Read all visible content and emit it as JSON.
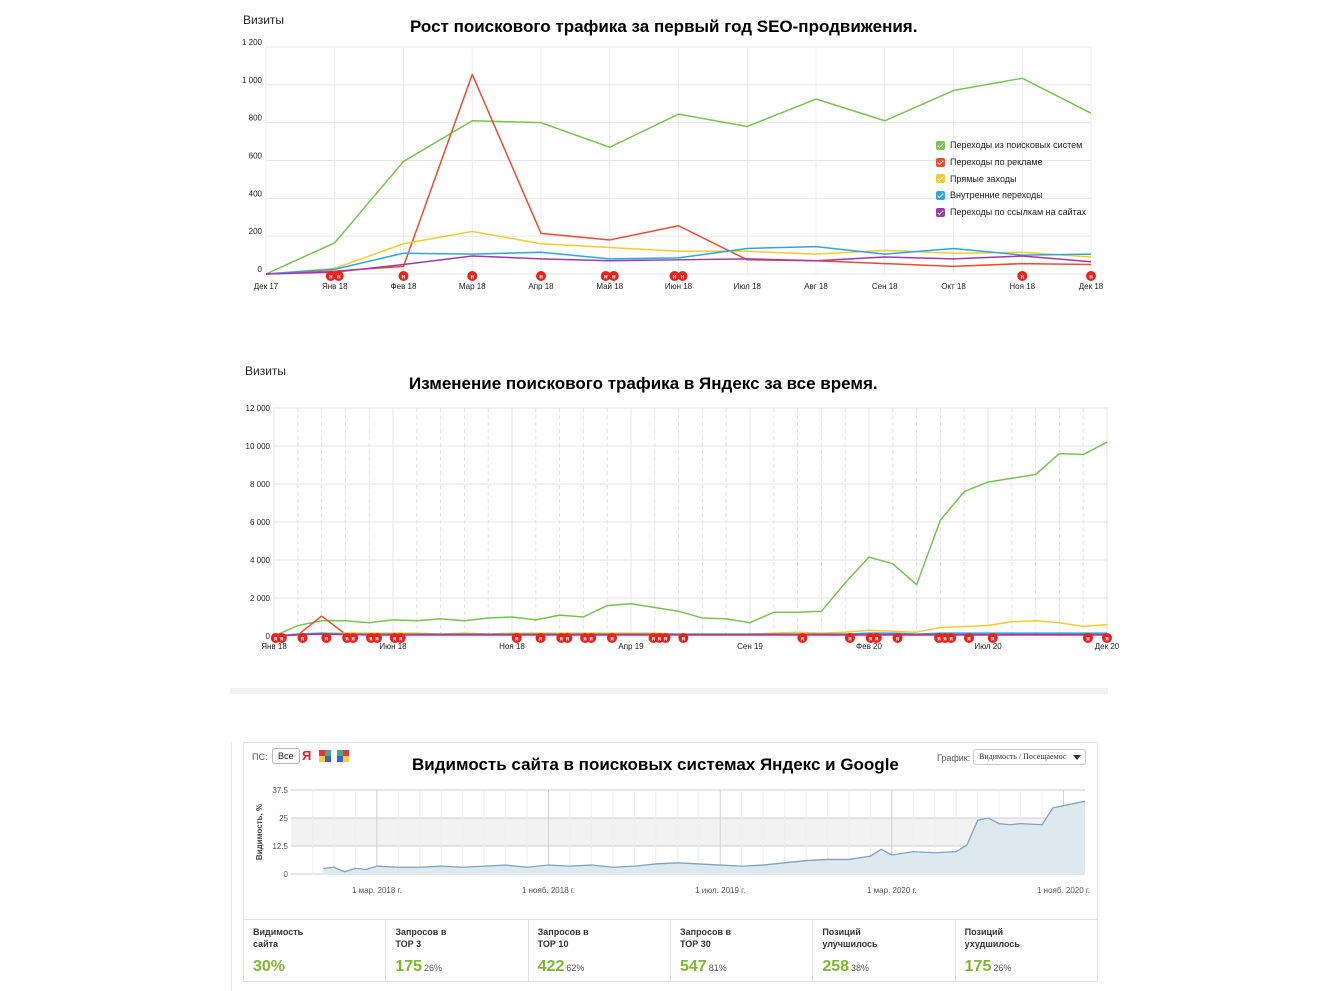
{
  "colors": {
    "search": "#74c64c",
    "ads": "#f24a2e",
    "direct": "#fdc82a",
    "internal": "#2aa7e6",
    "links": "#9d3ca8",
    "visibility": "#7ea3c2",
    "visibility_fill": "#dde8ef",
    "accent_green": "#7cb82f"
  },
  "chart_data": [
    {
      "type": "line",
      "title": "Рост поискового трафика за первый год SEO-продвижения.",
      "ylabel": "Визиты",
      "ylim": [
        0,
        1200
      ],
      "yticks": [
        0,
        200,
        400,
        600,
        800,
        1000,
        1200
      ],
      "ytick_labels": [
        "0",
        "200",
        "400",
        "600",
        "800",
        "1 000",
        "1 200"
      ],
      "categories": [
        "Дек 17",
        "Янв 18",
        "Фев 18",
        "Мар 18",
        "Апр 18",
        "Май 18",
        "Июн 18",
        "Июл 18",
        "Авг 18",
        "Сен 18",
        "Окт 18",
        "Ноя 18",
        "Дек 18"
      ],
      "grid": true,
      "legend_position": "right",
      "series": [
        {
          "name": "Переходы из поисковых систем",
          "color": "#74c64c",
          "values": [
            0,
            165,
            595,
            810,
            800,
            670,
            845,
            780,
            925,
            810,
            970,
            1035,
            850
          ]
        },
        {
          "name": "Переходы по рекламе",
          "color": "#f24a2e",
          "values": [
            0,
            15,
            40,
            1055,
            215,
            180,
            255,
            75,
            70,
            55,
            40,
            55,
            50
          ]
        },
        {
          "name": "Прямые заходы",
          "color": "#fdc82a",
          "values": [
            0,
            30,
            160,
            225,
            160,
            140,
            120,
            120,
            105,
            125,
            110,
            115,
            90
          ]
        },
        {
          "name": "Внутренние переходы",
          "color": "#2aa7e6",
          "values": [
            0,
            25,
            110,
            105,
            115,
            80,
            85,
            135,
            145,
            105,
            135,
            100,
            105
          ]
        },
        {
          "name": "Переходы по ссылкам на сайтах",
          "color": "#9d3ca8",
          "values": [
            0,
            10,
            50,
            95,
            80,
            70,
            75,
            80,
            70,
            90,
            80,
            95,
            65
          ]
        }
      ],
      "markers": [
        {
          "x": 1,
          "label": "н",
          "count": 2
        },
        {
          "x": 2,
          "label": "н",
          "count": 1
        },
        {
          "x": 3,
          "label": "н",
          "count": 1
        },
        {
          "x": 4,
          "label": "н",
          "count": 1
        },
        {
          "x": 5,
          "label": "н",
          "count": 2
        },
        {
          "x": 6,
          "label": "н",
          "count": 2
        },
        {
          "x": 11,
          "label": "н",
          "count": 1
        },
        {
          "x": 12,
          "label": "н",
          "count": 1
        }
      ]
    },
    {
      "type": "line",
      "title": "Изменение поискового трафика в Яндекс за все время.",
      "ylabel": "Визиты",
      "ylim": [
        0,
        12000
      ],
      "yticks": [
        0,
        2000,
        4000,
        6000,
        8000,
        10000,
        12000
      ],
      "ytick_labels": [
        "0",
        "2 000",
        "4 000",
        "6 000",
        "8 000",
        "10 000",
        "12 000"
      ],
      "x_range": [
        0,
        35
      ],
      "x_tick_positions": [
        0,
        5,
        10,
        15,
        20,
        25,
        30,
        35
      ],
      "x_tick_labels": [
        "Янв 18",
        "Июн 18",
        "Ноя 18",
        "Апр 19",
        "Сен 19",
        "Фев 20",
        "Июл 20",
        "Дек 20"
      ],
      "grid": true,
      "series": [
        {
          "name": "Переходы из поисковых систем",
          "color": "#74c64c",
          "values": [
            0,
            550,
            800,
            800,
            700,
            850,
            800,
            900,
            800,
            950,
            1000,
            850,
            1100,
            1000,
            1600,
            1700,
            1500,
            1300,
            950,
            900,
            700,
            1250,
            1250,
            1300,
            2800,
            4150,
            3800,
            2700,
            6100,
            7600,
            8100,
            8300,
            8500,
            9600,
            9550,
            10200
          ]
        },
        {
          "name": "Переходы по рекламе",
          "color": "#f24a2e",
          "values": [
            0,
            50,
            1050,
            100,
            50,
            50,
            50,
            50,
            50,
            50,
            50,
            50,
            50,
            50,
            50,
            50,
            50,
            50,
            50,
            50,
            50,
            50,
            50,
            50,
            50,
            50,
            50,
            50,
            50,
            50,
            50,
            50,
            50,
            50,
            50,
            50
          ]
        },
        {
          "name": "Прямые заходы",
          "color": "#fdc82a",
          "values": [
            0,
            100,
            150,
            150,
            150,
            150,
            150,
            100,
            150,
            100,
            150,
            150,
            150,
            150,
            150,
            150,
            150,
            100,
            100,
            100,
            100,
            150,
            200,
            150,
            200,
            300,
            250,
            200,
            450,
            500,
            550,
            750,
            800,
            700,
            500,
            600
          ]
        },
        {
          "name": "Внутренние переходы",
          "color": "#2aa7e6",
          "values": [
            0,
            100,
            150,
            100,
            100,
            100,
            100,
            100,
            100,
            100,
            100,
            100,
            100,
            100,
            100,
            100,
            100,
            100,
            100,
            100,
            100,
            100,
            100,
            100,
            100,
            150,
            150,
            100,
            150,
            150,
            150,
            150,
            150,
            150,
            150,
            150
          ]
        },
        {
          "name": "Переходы по ссылкам на сайтах",
          "color": "#9d3ca8",
          "values": [
            0,
            80,
            100,
            80,
            80,
            80,
            80,
            80,
            80,
            80,
            80,
            80,
            80,
            80,
            80,
            80,
            80,
            80,
            80,
            80,
            80,
            80,
            80,
            80,
            80,
            80,
            80,
            80,
            80,
            80,
            80,
            80,
            80,
            80,
            80,
            80
          ]
        }
      ],
      "markers": [
        {
          "x": 0.2,
          "label": "я",
          "count": 2
        },
        {
          "x": 1.2,
          "label": "я",
          "count": 1
        },
        {
          "x": 2.2,
          "label": "я",
          "count": 1
        },
        {
          "x": 3.2,
          "label": "я",
          "count": 2
        },
        {
          "x": 4.2,
          "label": "я",
          "count": 2
        },
        {
          "x": 5.2,
          "label": "я",
          "count": 2
        },
        {
          "x": 10.2,
          "label": "я",
          "count": 1
        },
        {
          "x": 11.2,
          "label": "я",
          "count": 1
        },
        {
          "x": 12.2,
          "label": "я",
          "count": 2
        },
        {
          "x": 13.2,
          "label": "я",
          "count": 2
        },
        {
          "x": 14.2,
          "label": "я",
          "count": 1
        },
        {
          "x": 16.2,
          "label": "я",
          "count": 3
        },
        {
          "x": 17.2,
          "label": "я",
          "count": 1
        },
        {
          "x": 22.2,
          "label": "я",
          "count": 1
        },
        {
          "x": 24.2,
          "label": "я",
          "count": 1
        },
        {
          "x": 25.2,
          "label": "я",
          "count": 2
        },
        {
          "x": 26.2,
          "label": "я",
          "count": 1
        },
        {
          "x": 28.2,
          "label": "я",
          "count": 3
        },
        {
          "x": 29.2,
          "label": "я",
          "count": 1
        },
        {
          "x": 30.2,
          "label": "я",
          "count": 1
        },
        {
          "x": 34.2,
          "label": "я",
          "count": 1
        },
        {
          "x": 35,
          "label": "я",
          "count": 1
        }
      ]
    },
    {
      "type": "area",
      "title": "Видимость сайта в поисковых системах Яндекс и Google",
      "ylabel": "Видимость, %",
      "ylim": [
        0,
        37.5
      ],
      "yticks": [
        0,
        12.5,
        25,
        37.5
      ],
      "ytick_labels": [
        "0",
        "12.5",
        "25",
        "37.5"
      ],
      "x_range": [
        0,
        37
      ],
      "x_tick_positions": [
        4,
        12,
        20,
        28,
        36
      ],
      "x_tick_labels": [
        "1 мар. 2018 г.",
        "1 нояб. 2018 г.",
        "1 июл. 2019 г.",
        "1 мар. 2020 г.",
        "1 нояб. 2020 г."
      ],
      "grid": true,
      "series": [
        {
          "name": "Видимость",
          "x": [
            1.5,
            2.0,
            2.5,
            3.0,
            3.5,
            4.0,
            5.0,
            6.0,
            7.0,
            8.0,
            9.0,
            10.0,
            11.0,
            12.0,
            13.0,
            14.0,
            15.0,
            16.0,
            17.0,
            18.0,
            19.0,
            20.0,
            21.0,
            22.0,
            23.0,
            24.0,
            25.0,
            26.0,
            27.0,
            27.5,
            28.0,
            29.0,
            30.0,
            31.0,
            31.5,
            32.0,
            32.5,
            33.0,
            33.5,
            34.0,
            35.0,
            35.5,
            36.0,
            37.0
          ],
          "values": [
            2.5,
            3.0,
            1.0,
            2.5,
            2.0,
            3.5,
            3.0,
            3.0,
            3.5,
            3.0,
            3.5,
            4.0,
            3.0,
            4.0,
            3.5,
            4.0,
            3.0,
            3.5,
            4.5,
            5.0,
            4.5,
            4.0,
            3.5,
            4.0,
            5.0,
            6.0,
            6.5,
            6.5,
            8.0,
            11.0,
            8.5,
            10.0,
            9.5,
            10.0,
            13.0,
            24.0,
            25.0,
            22.5,
            22.0,
            22.5,
            22.0,
            29.5,
            30.5,
            32.5
          ]
        }
      ]
    }
  ],
  "visibility_widget": {
    "ps_label": "ПС:",
    "all_button": "Все",
    "yandex_glyph": "Я",
    "graph_label": "График:",
    "graph_select_value": "Видимость / Посещаемос",
    "stats": [
      {
        "label": "Видимость\nсайта",
        "value": "30%",
        "pct": ""
      },
      {
        "label": "Запросов в\nТОР 3",
        "value": "175",
        "pct": "26%"
      },
      {
        "label": "Запросов в\nТОР 10",
        "value": "422",
        "pct": "62%"
      },
      {
        "label": "Запросов в\nТОР 30",
        "value": "547",
        "pct": "81%"
      },
      {
        "label": "Позиций\nулучшилось",
        "value": "258",
        "pct": "38%"
      },
      {
        "label": "Позиций\nухудшилось",
        "value": "175",
        "pct": "26%"
      }
    ]
  }
}
